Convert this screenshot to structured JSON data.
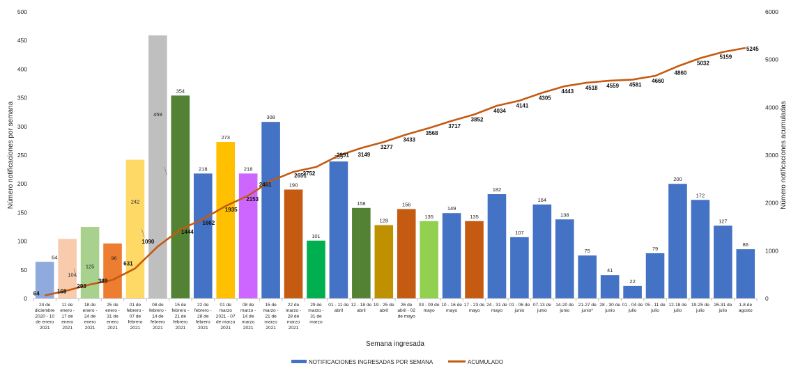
{
  "chart_data": {
    "type": "bar",
    "xlabel": "Semana ingresada",
    "ylabel": "Número notificaciones por semana",
    "y2label": "Número notificaciones acumuladas",
    "ylim": [
      0,
      500
    ],
    "y2lim": [
      0,
      6000
    ],
    "yticks": [
      "0",
      "50",
      "100",
      "150",
      "200",
      "250",
      "300",
      "350",
      "400",
      "450",
      "500"
    ],
    "y2ticks": [
      "0",
      "1000",
      "2000",
      "3000",
      "4000",
      "5000",
      "6000"
    ],
    "grid": false,
    "legend": "bottom",
    "categories": [
      "24 de diciembre 2020 - 10 de enero 2021",
      "11 de enero - 17 de enero 2021",
      "18 de enero - 24 de enero 2021",
      "25 de enero - 31 de enero 2021",
      "01 de febrero - 07 de febrero 2021",
      "08 de febrero - 14 de febrero 2021",
      "15 de febrero - 21 de febrero 2021",
      "22 de febrero - 28 de febrero 2021",
      "01 de marzo 2021 - 07 de marzo 2021",
      "08 de marzo - 14 de marzo 2021",
      "15 de marzo - 21 de marzo 2021",
      "22 de marzo - 28 de marzo 2021",
      "29 de marzo - 31 de marzo",
      "01 - 11 de abril",
      "12 - 18 de abril",
      "19 - 25 de abril",
      "26 de abril - 02 de mayo",
      "03 - 09 de mayo",
      "10 - 16 de mayo",
      "17 - 23 de mayo",
      "24 - 31 de mayo",
      "01 - 06 de junio",
      "07-13 de junio",
      "14-20 de junio",
      "21-27 de junio*",
      "28 - 30 de junio",
      "01 - 04 de julio",
      "05 - 11 de julio",
      "12-18 de julio",
      "19-25 de julio",
      "26-31 de julio",
      "1-8 de agosto"
    ],
    "category_lines": [
      [
        "24 de",
        "diciembre",
        "2020 - 10",
        "de enero",
        "2021"
      ],
      [
        "11 de",
        "enero -",
        "17 de",
        "enero",
        "2021"
      ],
      [
        "18 de",
        "enero -",
        "24 de",
        "enero",
        "2021"
      ],
      [
        "25 de",
        "enero -",
        "31 de",
        "enero",
        "2021"
      ],
      [
        "01 de",
        "febrero -",
        "07 de",
        "febrero",
        "2021"
      ],
      [
        "08 de",
        "febrero -",
        "14 de",
        "febrero",
        "2021"
      ],
      [
        "15 de",
        "febrero -",
        "21 de",
        "febrero",
        "2021"
      ],
      [
        "22 de",
        "febrero -",
        "28 de",
        "febrero",
        "2021"
      ],
      [
        "01 de",
        "marzo",
        "2021 - 07",
        "de marzo",
        "2021"
      ],
      [
        "08 de",
        "marzo -",
        "14 de",
        "marzo",
        "2021"
      ],
      [
        "15 de",
        "marzo -",
        "21 de",
        "marzo",
        "2021"
      ],
      [
        "22 de",
        "marzo -",
        "28 de",
        "marzo",
        "2021"
      ],
      [
        "29 de",
        "marzo -",
        "31 de",
        "marzo"
      ],
      [
        "01 - 11 de",
        "abril"
      ],
      [
        "12 - 18 de",
        "abril"
      ],
      [
        "19 - 25 de",
        "abril"
      ],
      [
        "26 de",
        "abril - 02",
        "de mayo"
      ],
      [
        "03 - 09 de",
        "mayo"
      ],
      [
        "10 - 16 de",
        "mayo"
      ],
      [
        "17 - 23 de",
        "mayo"
      ],
      [
        "24 - 31 de",
        "mayo"
      ],
      [
        "01 - 06 de",
        "junio"
      ],
      [
        "07-13 de",
        "junio"
      ],
      [
        "14-20 de",
        "junio"
      ],
      [
        "21-27 de",
        "junio*"
      ],
      [
        "28 - 30 de",
        "junio"
      ],
      [
        "01 - 04 de",
        "julio"
      ],
      [
        "05 - 11 de",
        "julio"
      ],
      [
        "12-18 de",
        "julio"
      ],
      [
        "19-25 de",
        "julio"
      ],
      [
        "26-31 de",
        "julio"
      ],
      [
        "1-8 de",
        "agosto"
      ]
    ],
    "series": [
      {
        "name": "NOTIFICACIONES INGRESADAS POR SEMANA",
        "type": "bar",
        "color": "#4472C4",
        "values": [
          64,
          104,
          125,
          96,
          242,
          459,
          354,
          218,
          273,
          218,
          308,
          190,
          101,
          239,
          158,
          128,
          156,
          135,
          149,
          135,
          182,
          107,
          164,
          138,
          75,
          41,
          22,
          79,
          200,
          172,
          127,
          86
        ],
        "value_labels": [
          "64",
          "104",
          "125",
          "96",
          "242",
          "459",
          "354",
          "218",
          "273",
          "218",
          "308",
          "190",
          "101",
          "239",
          "158",
          "128",
          "156",
          "135",
          "149",
          "135",
          "182",
          "107",
          "164",
          "138",
          "75",
          "41",
          "22",
          "79",
          "200",
          "172",
          "127",
          "86"
        ],
        "bar_colors": [
          "#8FAADC",
          "#F8CBAD",
          "#A9D18E",
          "#ED7D31",
          "#FFD966",
          "#BFBFBF",
          "#548235",
          "#4472C4",
          "#FFC000",
          "#CC66FF",
          "#4472C4",
          "#C55A11",
          "#00B050",
          "#4472C4",
          "#548235",
          "#BF9000",
          "#C55A11",
          "#92D050",
          "#4472C4",
          "#C55A11",
          "#4472C4",
          "#4472C4",
          "#4472C4",
          "#4472C4",
          "#4472C4",
          "#4472C4",
          "#4472C4",
          "#4472C4",
          "#4472C4",
          "#4472C4",
          "#4472C4",
          "#4472C4"
        ]
      },
      {
        "name": "ACUMULADO",
        "type": "line",
        "axis": "secondary",
        "color": "#C55A11",
        "values": [
          64,
          168,
          293,
          389,
          631,
          1090,
          1444,
          1662,
          1935,
          2153,
          2461,
          2651,
          2752,
          2991,
          3149,
          3277,
          3433,
          3568,
          3717,
          3852,
          4034,
          4141,
          4305,
          4443,
          4518,
          4559,
          4581,
          4660,
          4860,
          5032,
          5159,
          5245
        ],
        "value_labels": [
          "64",
          "168",
          "293",
          "389",
          "631",
          "1090",
          "1444",
          "1662",
          "1935",
          "2153",
          "2461",
          "2651",
          "2752",
          "2991",
          "3149",
          "3277",
          "3433",
          "3568",
          "3717",
          "3852",
          "4034",
          "4141",
          "4305",
          "4443",
          "4518",
          "4559",
          "4581",
          "4660",
          "4860",
          "5032",
          "5159",
          "5245"
        ]
      }
    ]
  }
}
